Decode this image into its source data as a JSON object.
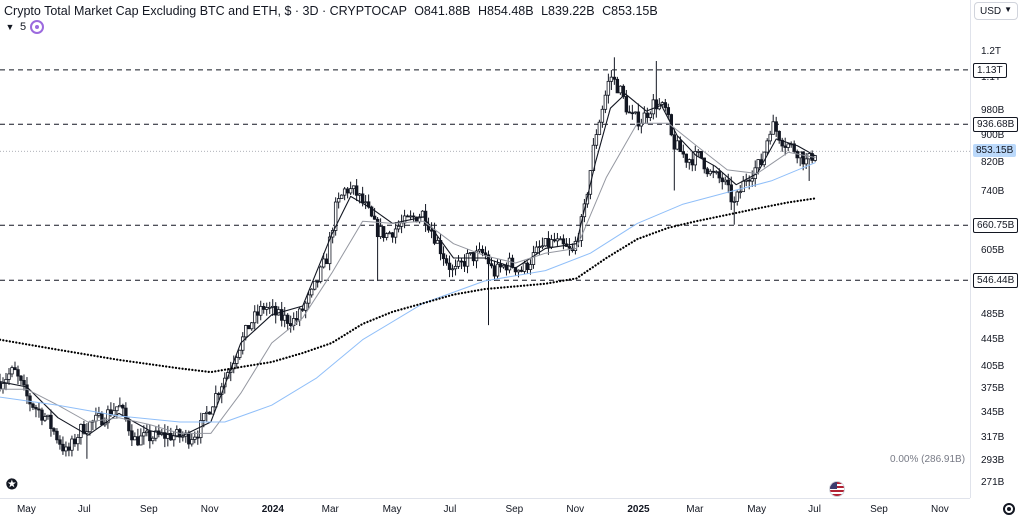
{
  "header": {
    "title": "Crypto Total Market Cap Excluding BTC and ETH, $ · 3D · CRYPTOCAP",
    "ohlc": [
      {
        "label": "O",
        "value": "841.88B"
      },
      {
        "label": "H",
        "value": "854.48B"
      },
      {
        "label": "L",
        "value": "839.22B"
      },
      {
        "label": "C",
        "value": "853.15B"
      }
    ],
    "indicator_count": "5"
  },
  "currency_label": "USD",
  "bottom_label": "0.00% (286.91B)",
  "colors": {
    "candle": "#131722",
    "fast_ma": "#131722",
    "slow_ma": "#9598a1",
    "long_ma": "#90bff9",
    "dotted_ma": "#000000",
    "level_line": "#131722",
    "current_tag": "#bbd9fb"
  },
  "icons": [
    "chevron-down-icon",
    "sync-icon",
    "tradingview-logo-icon",
    "us-flag-icon",
    "gear-icon"
  ],
  "chart_data": {
    "type": "candlestick",
    "scale": "log",
    "ylim": [
      260,
      1250
    ],
    "x_start": "2023-04-04",
    "x_end": "2025-11-30",
    "x_ticks": [
      {
        "date": "2023-05-01",
        "label": "May",
        "bold": false
      },
      {
        "date": "2023-07-01",
        "label": "Jul",
        "bold": false
      },
      {
        "date": "2023-09-01",
        "label": "Sep",
        "bold": false
      },
      {
        "date": "2023-11-01",
        "label": "Nov",
        "bold": false
      },
      {
        "date": "2024-01-01",
        "label": "2024",
        "bold": true
      },
      {
        "date": "2024-03-01",
        "label": "Mar",
        "bold": false
      },
      {
        "date": "2024-05-01",
        "label": "May",
        "bold": false
      },
      {
        "date": "2024-07-01",
        "label": "Jul",
        "bold": false
      },
      {
        "date": "2024-09-01",
        "label": "Sep",
        "bold": false
      },
      {
        "date": "2024-11-01",
        "label": "Nov",
        "bold": false
      },
      {
        "date": "2025-01-01",
        "label": "2025",
        "bold": true
      },
      {
        "date": "2025-03-01",
        "label": "Mar",
        "bold": false
      },
      {
        "date": "2025-05-01",
        "label": "May",
        "bold": false
      },
      {
        "date": "2025-07-01",
        "label": "Jul",
        "bold": false
      },
      {
        "date": "2025-09-01",
        "label": "Sep",
        "bold": false
      },
      {
        "date": "2025-11-01",
        "label": "Nov",
        "bold": false
      }
    ],
    "y_ticks": [
      {
        "value": 1200,
        "label": "1.2T"
      },
      {
        "value": 1100,
        "label": "1.1T"
      },
      {
        "value": 980,
        "label": "980B"
      },
      {
        "value": 900,
        "label": "900B"
      },
      {
        "value": 820,
        "label": "820B"
      },
      {
        "value": 740,
        "label": "740B"
      },
      {
        "value": 605,
        "label": "605B"
      },
      {
        "value": 485,
        "label": "485B"
      },
      {
        "value": 445,
        "label": "445B"
      },
      {
        "value": 405,
        "label": "405B"
      },
      {
        "value": 375,
        "label": "375B"
      },
      {
        "value": 345,
        "label": "345B"
      },
      {
        "value": 317,
        "label": "317B"
      },
      {
        "value": 293,
        "label": "293B"
      },
      {
        "value": 271,
        "label": "271B"
      }
    ],
    "levels": [
      {
        "value": 1130,
        "label": "1.13T"
      },
      {
        "value": 936.68,
        "label": "936.68B"
      },
      {
        "value": 660.75,
        "label": "660.75B"
      },
      {
        "value": 546.44,
        "label": "546.44B"
      }
    ],
    "current_price": {
      "value": 853.15,
      "label": "853.15B"
    },
    "close_path": [
      [
        "2023-04-04",
        385
      ],
      [
        "2023-04-18",
        400
      ],
      [
        "2023-05-03",
        360
      ],
      [
        "2023-05-20",
        340
      ],
      [
        "2023-06-10",
        300
      ],
      [
        "2023-06-25",
        328
      ],
      [
        "2023-07-15",
        340
      ],
      [
        "2023-08-01",
        355
      ],
      [
        "2023-08-17",
        315
      ],
      [
        "2023-09-01",
        318
      ],
      [
        "2023-09-20",
        320
      ],
      [
        "2023-10-10",
        318
      ],
      [
        "2023-10-20",
        325
      ],
      [
        "2023-11-01",
        355
      ],
      [
        "2023-11-20",
        405
      ],
      [
        "2023-12-10",
        470
      ],
      [
        "2023-12-25",
        500
      ],
      [
        "2024-01-10",
        480
      ],
      [
        "2024-01-25",
        475
      ],
      [
        "2024-02-10",
        520
      ],
      [
        "2024-02-25",
        590
      ],
      [
        "2024-03-05",
        700
      ],
      [
        "2024-03-15",
        750
      ],
      [
        "2024-03-25",
        740
      ],
      [
        "2024-04-05",
        700
      ],
      [
        "2024-04-15",
        650
      ],
      [
        "2024-04-25",
        640
      ],
      [
        "2024-05-15",
        670
      ],
      [
        "2024-06-01",
        690
      ],
      [
        "2024-06-20",
        600
      ],
      [
        "2024-07-01",
        560
      ],
      [
        "2024-07-15",
        590
      ],
      [
        "2024-08-01",
        600
      ],
      [
        "2024-08-10",
        560
      ],
      [
        "2024-08-25",
        580
      ],
      [
        "2024-09-08",
        565
      ],
      [
        "2024-09-25",
        610
      ],
      [
        "2024-10-10",
        625
      ],
      [
        "2024-10-28",
        600
      ],
      [
        "2024-11-08",
        680
      ],
      [
        "2024-11-20",
        900
      ],
      [
        "2024-12-05",
        1110
      ],
      [
        "2024-12-15",
        1050
      ],
      [
        "2024-12-25",
        960
      ],
      [
        "2025-01-05",
        950
      ],
      [
        "2025-01-18",
        1010
      ],
      [
        "2025-01-30",
        980
      ],
      [
        "2025-02-05",
        880
      ],
      [
        "2025-02-20",
        830
      ],
      [
        "2025-03-05",
        840
      ],
      [
        "2025-03-15",
        790
      ],
      [
        "2025-03-28",
        770
      ],
      [
        "2025-04-08",
        710
      ],
      [
        "2025-04-20",
        780
      ],
      [
        "2025-05-05",
        820
      ],
      [
        "2025-05-15",
        940
      ],
      [
        "2025-05-28",
        880
      ],
      [
        "2025-06-10",
        855
      ],
      [
        "2025-06-20",
        820
      ],
      [
        "2025-06-28",
        853.15
      ]
    ],
    "series": [
      {
        "name": "Fast MA",
        "style": "solid",
        "values": [
          [
            "2023-04-04",
            385
          ],
          [
            "2023-05-01",
            378
          ],
          [
            "2023-06-01",
            340
          ],
          [
            "2023-07-01",
            320
          ],
          [
            "2023-08-01",
            345
          ],
          [
            "2023-09-01",
            325
          ],
          [
            "2023-10-01",
            318
          ],
          [
            "2023-11-01",
            335
          ],
          [
            "2023-12-01",
            440
          ],
          [
            "2024-01-01",
            485
          ],
          [
            "2024-02-01",
            500
          ],
          [
            "2024-03-01",
            640
          ],
          [
            "2024-03-20",
            730
          ],
          [
            "2024-04-10",
            700
          ],
          [
            "2024-05-01",
            665
          ],
          [
            "2024-06-01",
            680
          ],
          [
            "2024-07-01",
            590
          ],
          [
            "2024-08-01",
            590
          ],
          [
            "2024-09-01",
            570
          ],
          [
            "2024-10-01",
            610
          ],
          [
            "2024-11-01",
            620
          ],
          [
            "2024-11-20",
            820
          ],
          [
            "2024-12-05",
            990
          ],
          [
            "2024-12-20",
            1040
          ],
          [
            "2025-01-10",
            980
          ],
          [
            "2025-01-25",
            1000
          ],
          [
            "2025-02-10",
            900
          ],
          [
            "2025-03-01",
            840
          ],
          [
            "2025-03-20",
            810
          ],
          [
            "2025-04-10",
            760
          ],
          [
            "2025-05-01",
            790
          ],
          [
            "2025-05-20",
            890
          ],
          [
            "2025-06-10",
            870
          ],
          [
            "2025-06-28",
            840
          ]
        ]
      },
      {
        "name": "Slow MA",
        "style": "solid",
        "values": [
          [
            "2023-04-04",
            375
          ],
          [
            "2023-05-01",
            375
          ],
          [
            "2023-06-01",
            355
          ],
          [
            "2023-07-01",
            335
          ],
          [
            "2023-08-01",
            340
          ],
          [
            "2023-09-01",
            332
          ],
          [
            "2023-10-01",
            322
          ],
          [
            "2023-11-01",
            322
          ],
          [
            "2023-12-01",
            370
          ],
          [
            "2024-01-01",
            440
          ],
          [
            "2024-02-01",
            480
          ],
          [
            "2024-03-01",
            560
          ],
          [
            "2024-04-01",
            670
          ],
          [
            "2024-05-01",
            665
          ],
          [
            "2024-06-01",
            670
          ],
          [
            "2024-07-01",
            620
          ],
          [
            "2024-08-01",
            595
          ],
          [
            "2024-09-01",
            580
          ],
          [
            "2024-10-01",
            600
          ],
          [
            "2024-11-01",
            610
          ],
          [
            "2024-12-01",
            780
          ],
          [
            "2025-01-01",
            940
          ],
          [
            "2025-02-01",
            940
          ],
          [
            "2025-03-01",
            870
          ],
          [
            "2025-04-01",
            800
          ],
          [
            "2025-05-01",
            790
          ],
          [
            "2025-06-01",
            850
          ],
          [
            "2025-06-28",
            835
          ]
        ]
      },
      {
        "name": "Long MA",
        "style": "solid",
        "values": [
          [
            "2023-04-04",
            365
          ],
          [
            "2023-06-01",
            355
          ],
          [
            "2023-08-01",
            342
          ],
          [
            "2023-10-01",
            335
          ],
          [
            "2023-11-15",
            335
          ],
          [
            "2024-01-01",
            355
          ],
          [
            "2024-02-15",
            390
          ],
          [
            "2024-04-01",
            445
          ],
          [
            "2024-06-01",
            505
          ],
          [
            "2024-08-01",
            545
          ],
          [
            "2024-10-01",
            565
          ],
          [
            "2024-11-15",
            600
          ],
          [
            "2025-01-01",
            665
          ],
          [
            "2025-02-15",
            710
          ],
          [
            "2025-04-01",
            740
          ],
          [
            "2025-05-15",
            770
          ],
          [
            "2025-06-28",
            820
          ]
        ]
      },
      {
        "name": "Dotted MA",
        "style": "dotted",
        "values": [
          [
            "2023-04-04",
            445
          ],
          [
            "2023-06-01",
            430
          ],
          [
            "2023-08-01",
            415
          ],
          [
            "2023-10-01",
            403
          ],
          [
            "2023-11-01",
            398
          ],
          [
            "2023-12-01",
            405
          ],
          [
            "2024-01-01",
            412
          ],
          [
            "2024-02-01",
            425
          ],
          [
            "2024-03-01",
            440
          ],
          [
            "2024-04-01",
            470
          ],
          [
            "2024-05-01",
            490
          ],
          [
            "2024-06-01",
            505
          ],
          [
            "2024-07-01",
            520
          ],
          [
            "2024-08-01",
            530
          ],
          [
            "2024-09-01",
            535
          ],
          [
            "2024-10-01",
            540
          ],
          [
            "2024-11-01",
            550
          ],
          [
            "2024-12-01",
            590
          ],
          [
            "2025-01-01",
            630
          ],
          [
            "2025-02-01",
            655
          ],
          [
            "2025-03-01",
            670
          ],
          [
            "2025-04-01",
            685
          ],
          [
            "2025-05-01",
            700
          ],
          [
            "2025-06-01",
            715
          ],
          [
            "2025-06-28",
            725
          ]
        ]
      }
    ],
    "spikes": [
      {
        "date": "2023-07-01",
        "low": 295
      },
      {
        "date": "2024-04-15",
        "low": 545
      },
      {
        "date": "2024-08-05",
        "low": 468
      },
      {
        "date": "2024-12-08",
        "high": 1180
      },
      {
        "date": "2025-01-20",
        "high": 1165
      },
      {
        "date": "2025-02-08",
        "low": 745
      },
      {
        "date": "2025-04-07",
        "low": 662
      },
      {
        "date": "2025-06-22",
        "low": 770
      }
    ]
  }
}
